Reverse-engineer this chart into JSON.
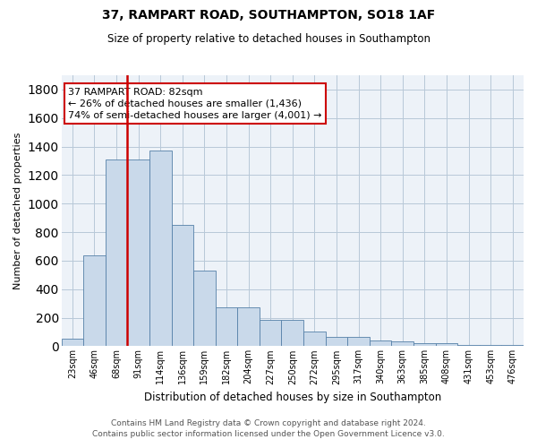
{
  "title_line1": "37, RAMPART ROAD, SOUTHAMPTON, SO18 1AF",
  "title_line2": "Size of property relative to detached houses in Southampton",
  "xlabel": "Distribution of detached houses by size in Southampton",
  "ylabel": "Number of detached properties",
  "footer_line1": "Contains HM Land Registry data © Crown copyright and database right 2024.",
  "footer_line2": "Contains public sector information licensed under the Open Government Licence v3.0.",
  "annotation_line1": "37 RAMPART ROAD: 82sqm",
  "annotation_line2": "← 26% of detached houses are smaller (1,436)",
  "annotation_line3": "74% of semi-detached houses are larger (4,001) →",
  "bar_color": "#c9d9ea",
  "bar_edge_color": "#5580a8",
  "highlight_color": "#cc0000",
  "grid_color": "#b8c8d8",
  "bg_color": "#edf2f8",
  "categories": [
    "23sqm",
    "46sqm",
    "68sqm",
    "91sqm",
    "114sqm",
    "136sqm",
    "159sqm",
    "182sqm",
    "204sqm",
    "227sqm",
    "250sqm",
    "272sqm",
    "295sqm",
    "317sqm",
    "340sqm",
    "363sqm",
    "385sqm",
    "408sqm",
    "431sqm",
    "453sqm",
    "476sqm"
  ],
  "values": [
    50,
    640,
    1310,
    1310,
    1370,
    850,
    530,
    270,
    270,
    185,
    185,
    100,
    65,
    65,
    40,
    35,
    20,
    20,
    10,
    10,
    10
  ],
  "vline_x": 2.5,
  "ylim": [
    0,
    1900
  ],
  "yticks": [
    0,
    200,
    400,
    600,
    800,
    1000,
    1200,
    1400,
    1600,
    1800
  ],
  "title_fontsize": 10,
  "subtitle_fontsize": 8.5,
  "ann_fontsize": 8,
  "ylabel_fontsize": 8,
  "xlabel_fontsize": 8.5,
  "xtick_fontsize": 7,
  "ytick_fontsize": 8,
  "footer_fontsize": 6.5
}
